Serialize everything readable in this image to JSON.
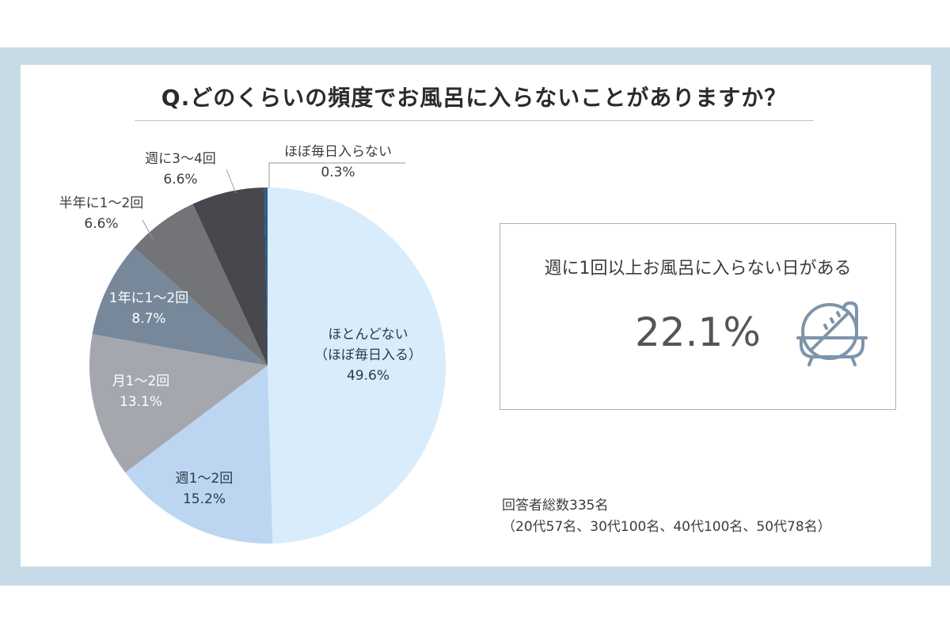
{
  "title": "Q.どのくらいの頻度でお風呂に入らないことがありますか？",
  "chart_data": {
    "type": "pie",
    "title": "Q.どのくらいの頻度でお風呂に入らないことがありますか？",
    "slices": [
      {
        "label": "ほとんどない",
        "sublabel": "（ほぼ毎日入る）",
        "value": 49.6,
        "display": "49.6%",
        "color": "#d8ecfb"
      },
      {
        "label": "週1〜2回",
        "value": 15.2,
        "display": "15.2%",
        "color": "#bcd6f2"
      },
      {
        "label": "月1〜2回",
        "value": 13.1,
        "display": "13.1%",
        "color": "#a4a7ad"
      },
      {
        "label": "1年に1〜2回",
        "value": 8.7,
        "display": "8.7%",
        "color": "#77889b"
      },
      {
        "label": "半年に1〜2回",
        "value": 6.6,
        "display": "6.6%",
        "color": "#727477"
      },
      {
        "label": "週に3〜4回",
        "value": 6.6,
        "display": "6.6%",
        "color": "#46484d"
      },
      {
        "label": "ほぼ毎日入らない",
        "value": 0.3,
        "display": "0.3%",
        "color": "#2a5c8e"
      }
    ]
  },
  "callout": {
    "label": "週に1回以上お風呂に入らない日がある",
    "value": "22.1%",
    "icon": "no-bath-icon"
  },
  "respondents": {
    "line1": "回答者総数335名",
    "line2": "（20代57名、30代100名、40代100名、50代78名）"
  },
  "colors": {
    "frame": "#c7dbe7",
    "text": "#3c3c3c",
    "icon": "#7d94ab"
  }
}
